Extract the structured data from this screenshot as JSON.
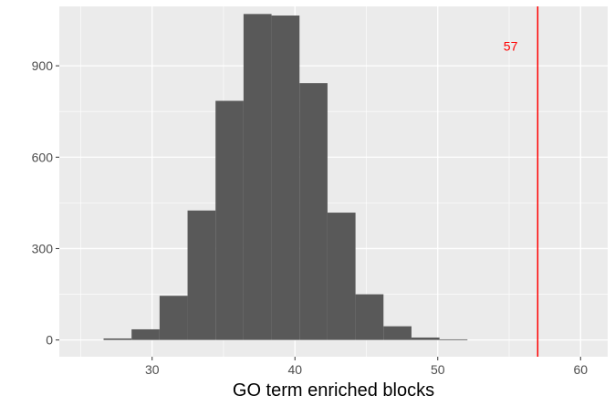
{
  "chart_data": {
    "type": "bar",
    "subtype": "histogram",
    "title": "",
    "xlabel": "GO term enriched blocks",
    "ylabel": "",
    "xlim": [
      23.5,
      61.9
    ],
    "ylim": [
      -55,
      1095
    ],
    "x_ticks": [
      30,
      40,
      50,
      60
    ],
    "y_ticks": [
      0,
      300,
      600,
      900
    ],
    "x_tick_labels": [
      "30",
      "40",
      "50",
      "60"
    ],
    "y_tick_labels": [
      "0",
      "300",
      "600",
      "900"
    ],
    "bin_width": 1.96,
    "bins": [
      {
        "start": 26.6,
        "end": 28.56,
        "count": 5
      },
      {
        "start": 28.56,
        "end": 30.52,
        "count": 35
      },
      {
        "start": 30.52,
        "end": 32.48,
        "count": 145
      },
      {
        "start": 32.48,
        "end": 34.44,
        "count": 425
      },
      {
        "start": 34.44,
        "end": 36.4,
        "count": 785
      },
      {
        "start": 36.4,
        "end": 38.36,
        "count": 1070
      },
      {
        "start": 38.36,
        "end": 40.32,
        "count": 1065
      },
      {
        "start": 40.32,
        "end": 42.28,
        "count": 843
      },
      {
        "start": 42.28,
        "end": 44.24,
        "count": 418
      },
      {
        "start": 44.24,
        "end": 46.2,
        "count": 150
      },
      {
        "start": 46.2,
        "end": 48.16,
        "count": 45
      },
      {
        "start": 48.16,
        "end": 50.12,
        "count": 8
      },
      {
        "start": 50.12,
        "end": 52.08,
        "count": 2
      }
    ],
    "vline": {
      "x": 57,
      "color": "#ff0000"
    },
    "annotation": {
      "text": "57",
      "x": 55.1,
      "y": 965,
      "color": "#ff0000"
    },
    "grid": true,
    "colors": {
      "panel_background": "#ebebeb",
      "grid_major": "#ffffff",
      "bar_fill": "#595959",
      "tick_text": "#4d4d4d",
      "tick_mark": "#333333"
    }
  }
}
